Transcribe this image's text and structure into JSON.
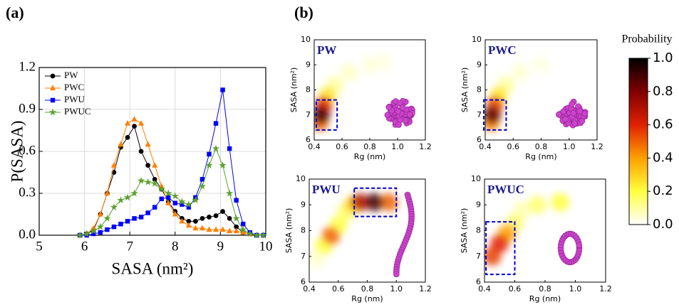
{
  "panel_labels": {
    "a": "(a)",
    "b": "(b)"
  },
  "chart_data": [
    {
      "type": "line",
      "xlabel": "SASA (nm²)",
      "ylabel": "P(SASA)",
      "xlim": [
        5,
        10
      ],
      "xticks": [
        5,
        6,
        7,
        8,
        9,
        10
      ],
      "ylim": [
        0,
        1.2
      ],
      "yticks": [
        {
          "value": 0,
          "label": "0.0"
        },
        0.3,
        0.6,
        0.9,
        1.2
      ],
      "grid": true,
      "legend": "upper left",
      "x": [
        5.9,
        6.05,
        6.2,
        6.35,
        6.5,
        6.65,
        6.8,
        6.95,
        7.1,
        7.25,
        7.4,
        7.55,
        7.7,
        7.85,
        8.0,
        8.15,
        8.3,
        8.45,
        8.6,
        8.75,
        8.9,
        9.05,
        9.2,
        9.35,
        9.5,
        9.65,
        9.8,
        9.95
      ],
      "series": [
        {
          "name": "PW",
          "color": "#000000",
          "marker": "circle",
          "values": [
            0,
            0.01,
            0.04,
            0.15,
            0.3,
            0.45,
            0.63,
            0.7,
            0.78,
            0.6,
            0.5,
            0.4,
            0.33,
            0.24,
            0.17,
            0.12,
            0.1,
            0.1,
            0.12,
            0.13,
            0.14,
            0.17,
            0.12,
            0.06,
            0.02,
            0.01,
            0,
            0
          ]
        },
        {
          "name": "PWC",
          "color": "#ff8000",
          "marker": "triangle",
          "values": [
            0,
            0.01,
            0.05,
            0.15,
            0.3,
            0.5,
            0.65,
            0.8,
            0.83,
            0.8,
            0.65,
            0.5,
            0.35,
            0.23,
            0.15,
            0.1,
            0.07,
            0.05,
            0.05,
            0.04,
            0.04,
            0.04,
            0.03,
            0.03,
            0.02,
            0.01,
            0,
            0
          ]
        },
        {
          "name": "PWU",
          "color": "#0000ff",
          "marker": "square",
          "values": [
            0,
            0,
            0.01,
            0.02,
            0.04,
            0.06,
            0.08,
            0.1,
            0.12,
            0.13,
            0.16,
            0.2,
            0.26,
            0.27,
            0.23,
            0.22,
            0.2,
            0.27,
            0.4,
            0.58,
            0.8,
            1.04,
            0.62,
            0.25,
            0.08,
            0.02,
            0,
            0
          ]
        },
        {
          "name": "PWUC",
          "color": "#5aa02c",
          "marker": "star",
          "values": [
            0,
            0.01,
            0.03,
            0.06,
            0.12,
            0.2,
            0.25,
            0.27,
            0.3,
            0.39,
            0.38,
            0.37,
            0.33,
            0.3,
            0.28,
            0.24,
            0.22,
            0.25,
            0.35,
            0.5,
            0.62,
            0.5,
            0.3,
            0.12,
            0.04,
            0.01,
            0,
            0
          ]
        }
      ]
    },
    {
      "type": "heatmap",
      "title": "PW",
      "xlabel": "Rg (nm)",
      "ylabel": "SASA (nm²)",
      "xlim": [
        0.4,
        1.2
      ],
      "xticks": [
        0.4,
        0.6,
        0.8,
        {
          "value": 1,
          "label": "1.0"
        },
        1.2
      ],
      "ylim": [
        6,
        10
      ],
      "yticks": [
        6,
        7,
        8,
        9,
        10
      ],
      "density": {
        "x": [
          0.9,
          0.8,
          0.65,
          0.55,
          0.5,
          0.44,
          0.47,
          0.45
        ],
        "y": [
          9.1,
          9.0,
          8.7,
          8.2,
          7.8,
          6.7,
          7.4,
          7.0
        ],
        "values": [
          0.03,
          0.04,
          0.06,
          0.1,
          0.25,
          0.5,
          0.6,
          0.9
        ]
      },
      "highlight": {
        "x": [
          0.415,
          0.565
        ],
        "y": [
          6.4,
          7.6
        ],
        "color": "#0000cc"
      }
    },
    {
      "type": "heatmap",
      "title": "PWC",
      "xlabel": "Rg (nm)",
      "ylabel": "SASA (nm²)",
      "xlim": [
        0.4,
        1.2
      ],
      "xticks": [
        0.4,
        0.6,
        0.8,
        {
          "value": 1,
          "label": "1.0"
        },
        1.2
      ],
      "ylim": [
        6,
        10
      ],
      "yticks": [
        6,
        7,
        8,
        9,
        10
      ],
      "density": {
        "x": [
          0.8,
          0.65,
          0.55,
          0.5,
          0.44,
          0.47,
          0.45
        ],
        "y": [
          9.0,
          8.7,
          8.2,
          7.8,
          6.7,
          7.4,
          7.0
        ],
        "values": [
          0.03,
          0.05,
          0.1,
          0.25,
          0.45,
          0.55,
          0.85
        ]
      },
      "highlight": {
        "x": [
          0.39,
          0.55
        ],
        "y": [
          6.4,
          7.6
        ],
        "color": "#0000cc"
      }
    },
    {
      "type": "heatmap",
      "title": "PWU",
      "xlabel": "Rg (nm)",
      "ylabel": "SASA (nm²)",
      "xlim": [
        0.4,
        1.2
      ],
      "xticks": [
        0.4,
        0.6,
        0.8,
        {
          "value": 1,
          "label": "1.0"
        },
        1.2
      ],
      "ylim": [
        6,
        10
      ],
      "yticks": [
        6,
        7,
        8,
        9,
        10
      ],
      "density": {
        "x": [
          0.45,
          0.65,
          0.5,
          0.6,
          0.7,
          0.55,
          0.95,
          0.75,
          0.85
        ],
        "y": [
          6.9,
          8.7,
          7.4,
          8.2,
          9.0,
          7.8,
          9.1,
          9.1,
          9.1
        ],
        "values": [
          0.05,
          0.15,
          0.2,
          0.2,
          0.3,
          0.5,
          0.5,
          0.7,
          0.9
        ]
      },
      "highlight": {
        "x": [
          0.71,
          1.0
        ],
        "y": [
          8.55,
          9.65
        ],
        "color": "#0000cc"
      }
    },
    {
      "type": "heatmap",
      "title": "PWUC",
      "xlabel": "Rg (nm)",
      "ylabel": "SASA (nm²)",
      "xlim": [
        0.4,
        1.2
      ],
      "xticks": [
        0.4,
        0.6,
        0.8,
        {
          "value": 1,
          "label": "1.0"
        },
        1.2
      ],
      "ylim": [
        6,
        10
      ],
      "yticks": [
        6,
        7,
        8,
        9,
        10
      ],
      "density": {
        "x": [
          0.65,
          0.6,
          0.75,
          0.9,
          0.55,
          0.45,
          0.5
        ],
        "y": [
          8.8,
          8.3,
          9.0,
          9.1,
          7.9,
          7.0,
          7.5
        ],
        "values": [
          0.08,
          0.15,
          0.15,
          0.2,
          0.4,
          0.55,
          0.6
        ]
      },
      "highlight": {
        "x": [
          0.41,
          0.6
        ],
        "y": [
          6.3,
          8.34
        ],
        "color": "#0000cc"
      }
    },
    {
      "type": "colorbar",
      "title": "Probability",
      "lim": [
        0,
        1
      ],
      "ticks": [
        {
          "value": 0,
          "label": "0.0"
        },
        0.2,
        0.4,
        0.6,
        0.8,
        {
          "value": 1,
          "label": "1.0"
        }
      ],
      "colors": [
        "#ffffff",
        "#ffff40",
        "#ffa000",
        "#e02000",
        "#800000",
        "#000000"
      ]
    }
  ]
}
